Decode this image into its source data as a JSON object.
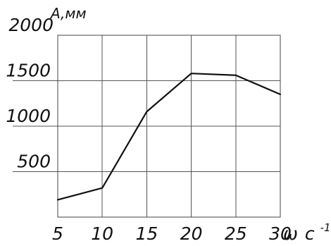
{
  "chart_data": {
    "type": "line",
    "x": [
      5,
      10,
      15,
      20,
      25,
      30
    ],
    "y": [
      190,
      320,
      1160,
      1580,
      1560,
      1350
    ],
    "xlabel": "ω c⁻¹",
    "ylabel": "A,мм",
    "xticks": [
      "5",
      "10",
      "15",
      "20",
      "25",
      "30"
    ],
    "yticks": [
      "500",
      "1000",
      "1500",
      "2000"
    ],
    "xlim": [
      5,
      30
    ],
    "ylim": [
      0,
      2000
    ],
    "grid": true,
    "line_color": "#111111"
  },
  "x_axis": {
    "symbol": "ω",
    "unit": "c",
    "exponent": "-1"
  },
  "y_axis": {
    "title": "A,мм"
  }
}
